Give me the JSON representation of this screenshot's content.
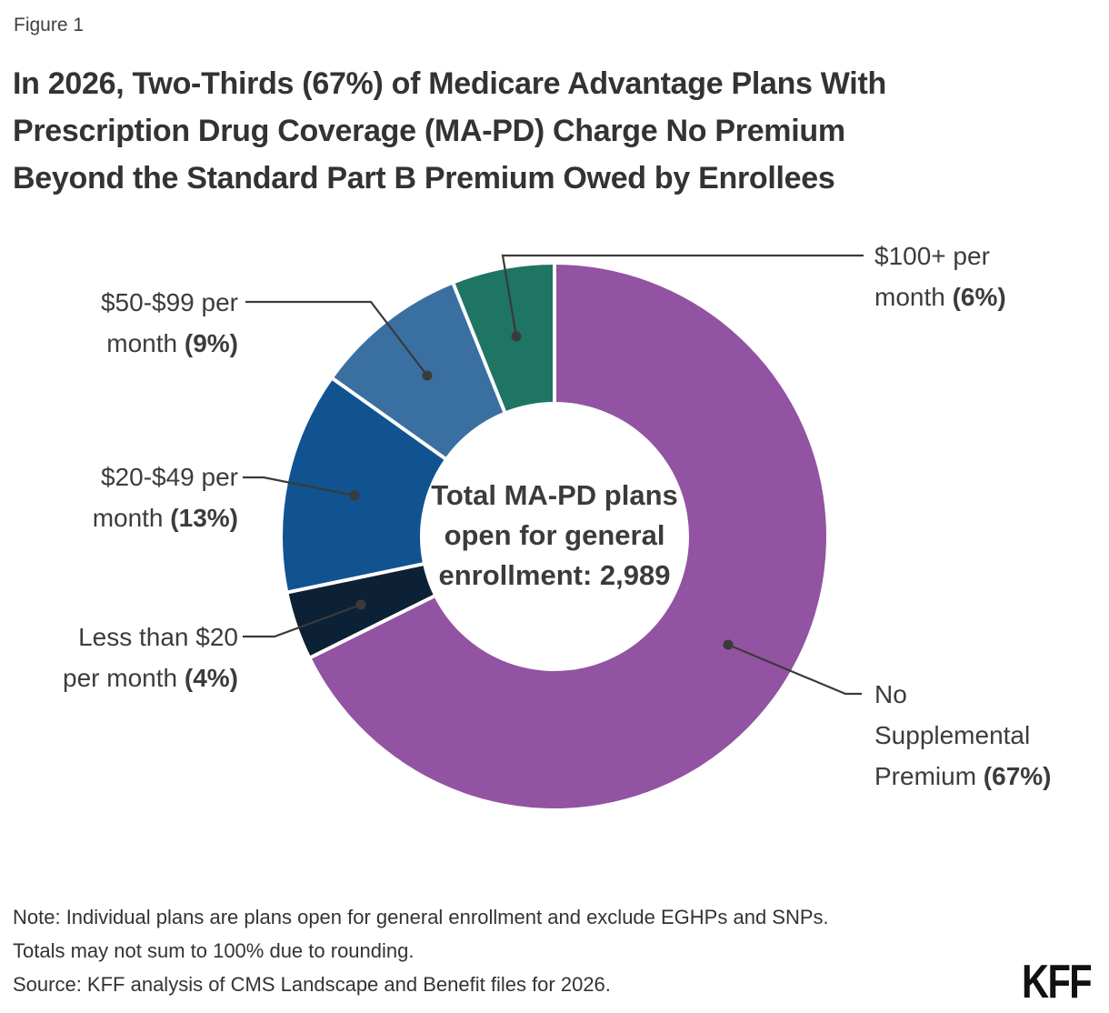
{
  "figure_label": "Figure 1",
  "title_lines": [
    "In 2026, Two-Thirds (67%) of Medicare Advantage Plans With",
    "Prescription Drug Coverage (MA-PD) Charge No Premium",
    "Beyond the Standard Part B Premium Owed by Enrollees"
  ],
  "chart_data": {
    "type": "pie",
    "donut": true,
    "title": "In 2026, Two-Thirds (67%) of Medicare Advantage Plans With Prescription Drug Coverage (MA-PD) Charge No Premium Beyond the Standard Part B Premium Owed by Enrollees",
    "center_label_lines": [
      "Total MA-PD plans",
      "open for general",
      "enrollment: 2,989"
    ],
    "total_plans": "2,989",
    "slices": [
      {
        "name": "No Supplemental Premium",
        "pct": 67,
        "color": "#9253A2",
        "call_line1": "No",
        "call_line2": "Supplemental",
        "call_line3": "Premium",
        "pct_label": "(67%)"
      },
      {
        "name": "Less than $20 per month",
        "pct": 4,
        "color": "#0D2136",
        "call_line1": "Less than $20",
        "call_line2": "per month",
        "pct_label": "(4%)"
      },
      {
        "name": "$20-$49 per month",
        "pct": 13,
        "color": "#105390",
        "call_line1": "$20-$49 per",
        "call_line2": "month",
        "pct_label": "(13%)"
      },
      {
        "name": "$50-$99 per month",
        "pct": 9,
        "color": "#3A70A1",
        "call_line1": "$50-$99 per",
        "call_line2": "month",
        "pct_label": "(9%)"
      },
      {
        "name": "$100+ per month",
        "pct": 6,
        "color": "#1E7564",
        "call_line1": "$100+ per",
        "call_line2": "month",
        "pct_label": "(6%)"
      }
    ],
    "leader_color": "#3A3A3A"
  },
  "note_lines": [
    "Note: Individual plans are plans open for general enrollment and exclude EGHPs and SNPs.",
    "Totals may not sum to 100% due to rounding."
  ],
  "source_text": "Source: KFF analysis of CMS Landscape and Benefit files for 2026.",
  "logo_text": "KFF"
}
